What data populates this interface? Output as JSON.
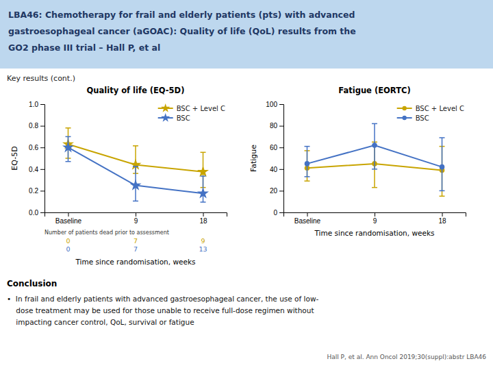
{
  "title": [
    "LBA46: Chemotherapy for frail and elderly patients (pts) with advanced",
    "gastroesophageal cancer (aGOAC): Quality of life (QoL) results from the",
    "GO2 phase III trial – Hall P, et al"
  ],
  "title_background": "#BDD7EE",
  "subtitle": "Key results (cont.)",
  "conclusion_title": "Conclusion",
  "conclusion": "•  In frail and elderly patients with advanced gastroesophageal cancer, the use of low-\n    dose treatment may be used for those unable to receive full-dose regimen without\n    impacting cancer control, QoL, survival or fatigue",
  "footer": "Hall P, et al. Ann Oncol 2019;30(suppl):abstr LBA46",
  "chart_data": [
    {
      "type": "line",
      "title": "Quality of life (EQ-5D)",
      "x_label": "Time since randomisation, weeks",
      "y_label": "EQ-5D",
      "categories": [
        "Baseline",
        "9",
        "18"
      ],
      "annotation": "Number of patients dead prior to assessment",
      "series": [
        {
          "name": "BSC + Level C",
          "color": "#C8A400",
          "marker": "star",
          "values": [
            0.63,
            0.44,
            0.375
          ],
          "yerr_low": [
            0.13,
            0.08,
            0.145
          ],
          "yerr_high": [
            0.15,
            0.175,
            0.18
          ],
          "dead_prior": [
            0,
            7,
            9
          ]
        },
        {
          "name": "BSC",
          "color": "#4472C4",
          "marker": "star",
          "values": [
            0.6,
            0.25,
            0.175
          ],
          "yerr_low": [
            0.13,
            0.145,
            0.08
          ],
          "yerr_high": [
            0.1,
            0.175,
            0.16
          ],
          "dead_prior": [
            0,
            7,
            13
          ]
        }
      ],
      "ylim": [
        0,
        1.0
      ],
      "yticks": [
        {
          "value": 0,
          "label": "0.0"
        },
        0.2,
        0.4,
        0.6,
        0.8,
        {
          "value": 1,
          "label": "1.0"
        }
      ],
      "grid": false,
      "legend": "upper right"
    },
    {
      "type": "line",
      "title": "Fatigue (EORTC)",
      "x_label": "Time since randomisation, weeks",
      "y_label": "Fatigue",
      "categories": [
        "Baseline",
        "9",
        "18"
      ],
      "series": [
        {
          "name": "BSC + Level C",
          "color": "#C8A400",
          "marker": "circle",
          "values": [
            41,
            45,
            39
          ],
          "yerr_low": [
            12,
            22,
            24
          ],
          "yerr_high": [
            16,
            20,
            22
          ]
        },
        {
          "name": "BSC",
          "color": "#4472C4",
          "marker": "circle",
          "values": [
            45,
            62,
            42
          ],
          "yerr_low": [
            12,
            22,
            22
          ],
          "yerr_high": [
            16,
            20,
            27
          ]
        }
      ],
      "ylim": [
        0,
        100
      ],
      "yticks": [
        0,
        20,
        40,
        60,
        80,
        100
      ],
      "grid": false,
      "legend": "upper right"
    }
  ]
}
